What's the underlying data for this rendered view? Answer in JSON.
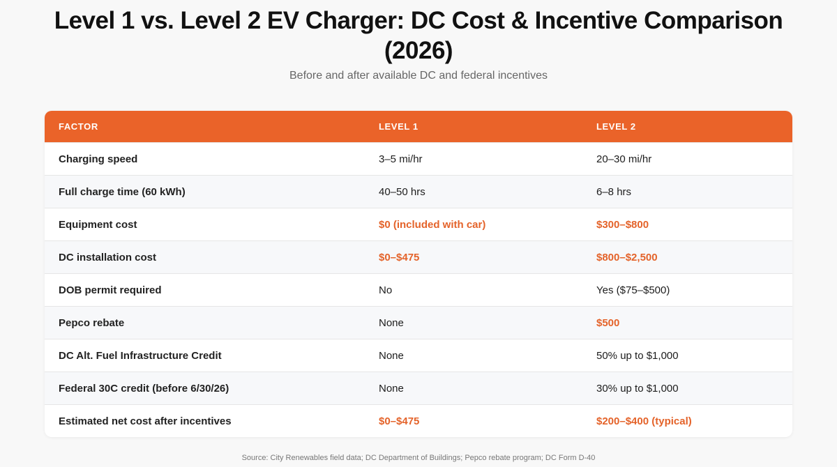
{
  "header": {
    "title": "Level 1 vs. Level 2 EV Charger: DC Cost & Incentive Comparison (2026)",
    "subtitle": "Before and after available DC and federal incentives"
  },
  "table": {
    "columns": [
      "FACTOR",
      "LEVEL 1",
      "LEVEL 2"
    ],
    "rows": [
      [
        "Charging speed",
        "3–5 mi/hr",
        "20–30 mi/hr"
      ],
      [
        "Full charge time (60 kWh)",
        "40–50 hrs",
        "6–8 hrs"
      ],
      [
        "Equipment cost",
        "$0 (included with car)",
        "$300–$800"
      ],
      [
        "DC installation cost",
        "$0–$475",
        "$800–$2,500"
      ],
      [
        "DOB permit required",
        "No",
        "Yes ($75–$500)"
      ],
      [
        "Pepco rebate",
        "None",
        "$500"
      ],
      [
        "DC Alt. Fuel Infrastructure Credit",
        "None",
        "50% up to $1,000"
      ],
      [
        "Federal 30C credit (before 6/30/26)",
        "None",
        "30% up to $1,000"
      ],
      [
        "Estimated net cost after incentives",
        "$0–$475",
        "$200–$400 (typical)"
      ]
    ]
  },
  "footer": {
    "source": "Source: City Renewables field data; DC Department of Buildings; Pepco rebate program; DC Form D-40"
  }
}
